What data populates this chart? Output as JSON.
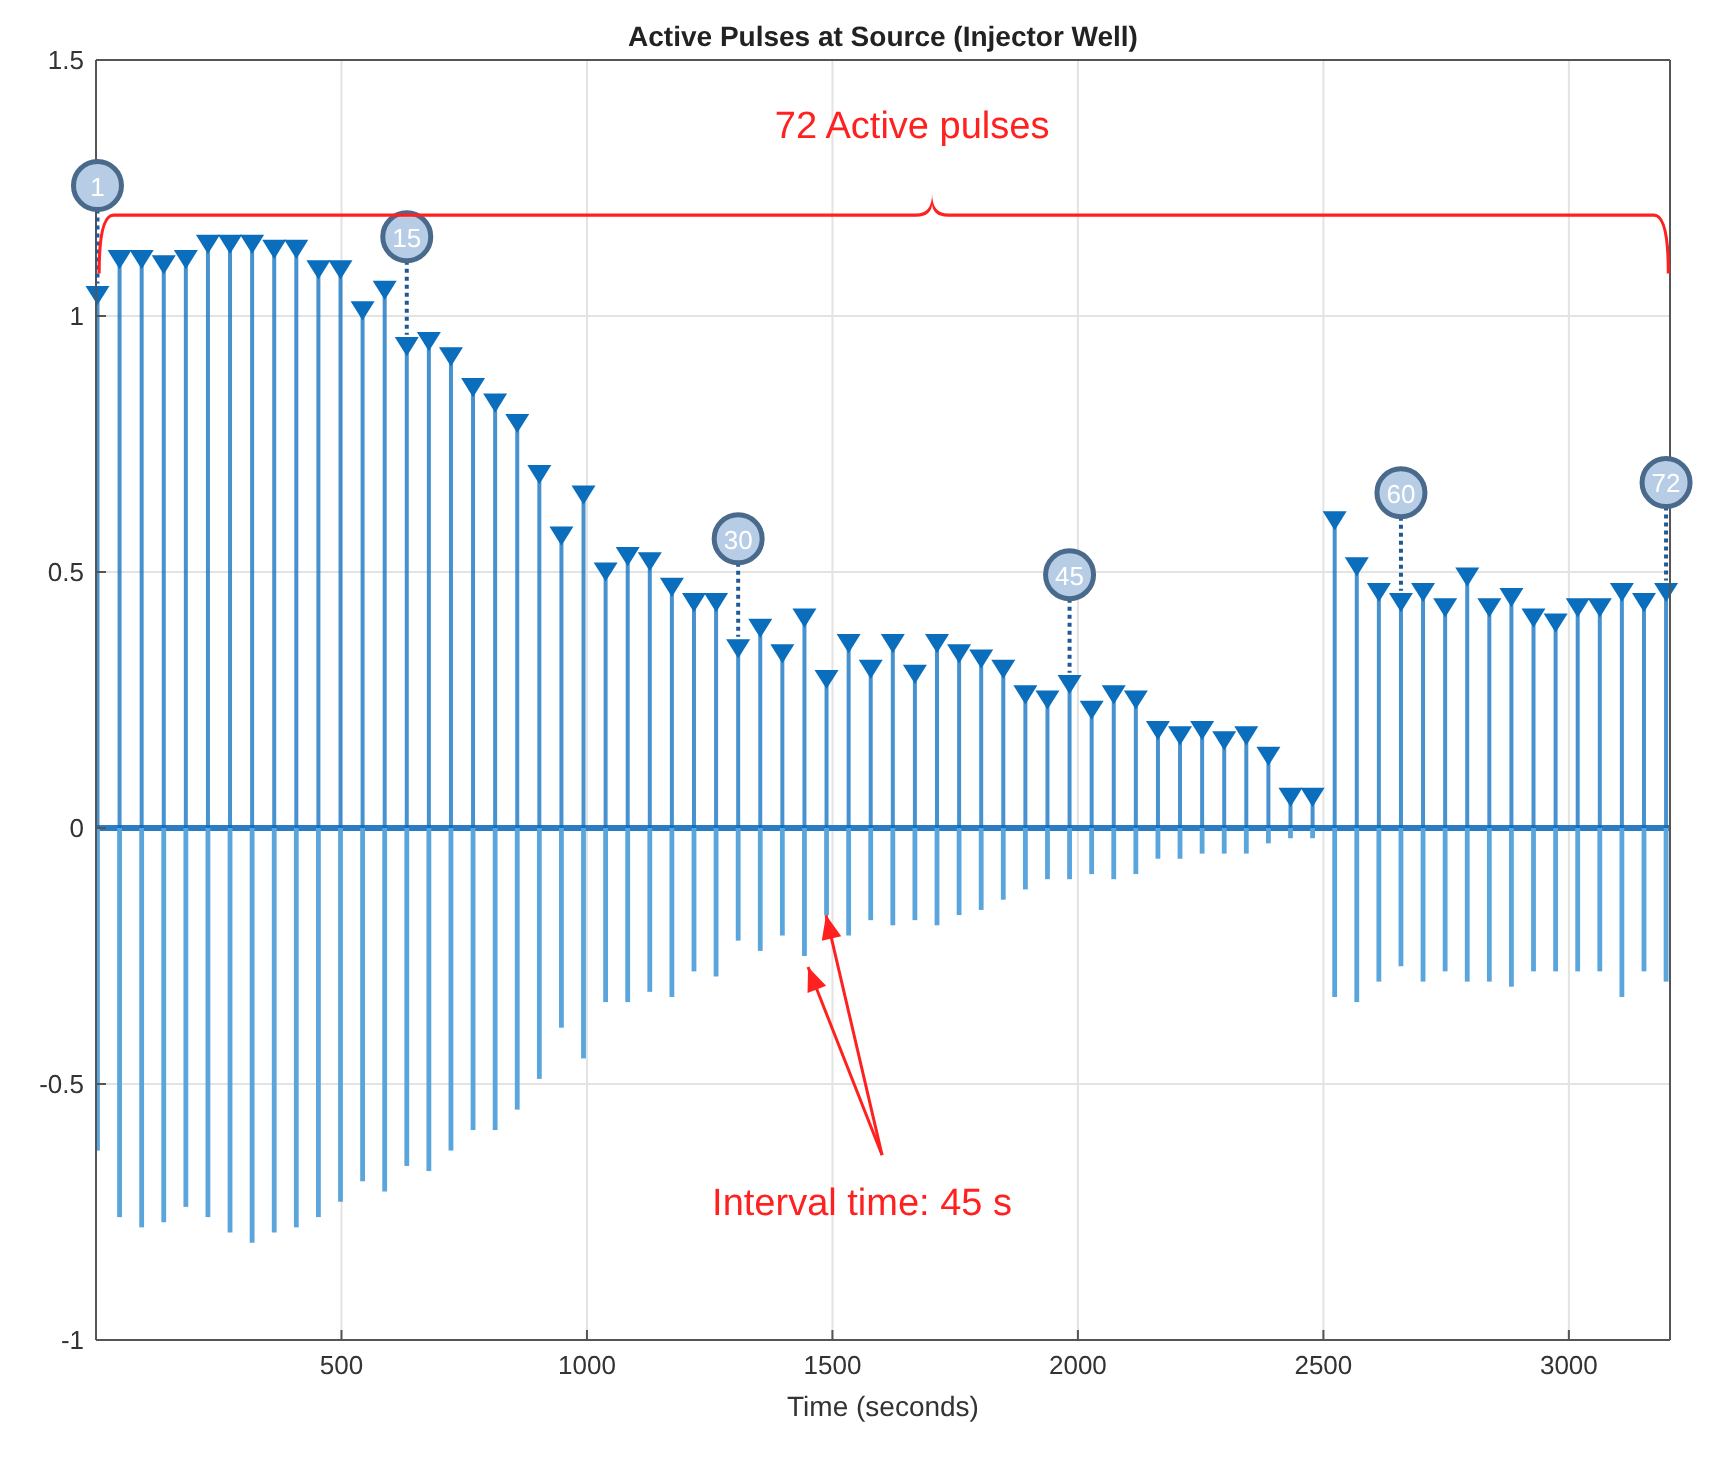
{
  "chart_data": {
    "type": "lollipop",
    "title": "Active Pulses at Source (Injector Well)",
    "xlabel": "Time (seconds)",
    "x": [
      3,
      48,
      93,
      138,
      183,
      228,
      273,
      318,
      363,
      408,
      453,
      498,
      543,
      588,
      633,
      678,
      723,
      768,
      813,
      858,
      903,
      948,
      993,
      1038,
      1083,
      1128,
      1173,
      1218,
      1263,
      1308,
      1353,
      1398,
      1443,
      1488,
      1533,
      1578,
      1623,
      1668,
      1713,
      1758,
      1803,
      1848,
      1893,
      1938,
      1983,
      2028,
      2073,
      2118,
      2163,
      2208,
      2253,
      2298,
      2343,
      2388,
      2433,
      2478,
      2523,
      2568,
      2613,
      2658,
      2703,
      2748,
      2793,
      2838,
      2883,
      2928,
      2973,
      3018,
      3063,
      3108,
      3153,
      3198
    ],
    "series": [
      {
        "color": "#0a6ebd",
        "marker": "triangle",
        "values": [
          1.04,
          1.11,
          1.11,
          1.1,
          1.11,
          1.14,
          1.14,
          1.14,
          1.13,
          1.13,
          1.09,
          1.09,
          1.01,
          1.05,
          0.94,
          0.95,
          0.92,
          0.86,
          0.83,
          0.79,
          0.69,
          0.57,
          0.65,
          0.5,
          0.53,
          0.52,
          0.47,
          0.44,
          0.44,
          0.35,
          0.39,
          0.34,
          0.41,
          0.29,
          0.36,
          0.31,
          0.36,
          0.3,
          0.36,
          0.34,
          0.33,
          0.31,
          0.26,
          0.25,
          0.28,
          0.23,
          0.26,
          0.25,
          0.19,
          0.18,
          0.19,
          0.17,
          0.18,
          0.14,
          0.06,
          0.06,
          0.6,
          0.51,
          0.46,
          0.44,
          0.46,
          0.43,
          0.49,
          0.43,
          0.45,
          0.41,
          0.4,
          0.43,
          0.43,
          0.46,
          0.44,
          0.46
        ]
      },
      {
        "type": "bar",
        "color": "#5aa5dc",
        "values": [
          -0.63,
          -0.76,
          -0.78,
          -0.77,
          -0.74,
          -0.76,
          -0.79,
          -0.81,
          -0.79,
          -0.78,
          -0.76,
          -0.73,
          -0.69,
          -0.71,
          -0.66,
          -0.67,
          -0.63,
          -0.59,
          -0.59,
          -0.55,
          -0.49,
          -0.39,
          -0.45,
          -0.34,
          -0.34,
          -0.32,
          -0.33,
          -0.28,
          -0.29,
          -0.22,
          -0.24,
          -0.21,
          -0.25,
          -0.17,
          -0.21,
          -0.18,
          -0.19,
          -0.18,
          -0.19,
          -0.17,
          -0.16,
          -0.14,
          -0.12,
          -0.1,
          -0.1,
          -0.09,
          -0.1,
          -0.09,
          -0.06,
          -0.06,
          -0.05,
          -0.05,
          -0.05,
          -0.03,
          -0.02,
          -0.02,
          -0.33,
          -0.34,
          -0.3,
          -0.27,
          -0.3,
          -0.28,
          -0.3,
          -0.3,
          -0.31,
          -0.28,
          -0.28,
          -0.28,
          -0.28,
          -0.33,
          -0.28,
          -0.3
        ]
      }
    ],
    "xlim": [
      0,
      3206
    ],
    "xticks": [
      500,
      1000,
      1500,
      2000,
      2500,
      3000
    ],
    "ylim": [
      -1,
      1.5
    ],
    "yticks": [
      -1,
      -0.5,
      0,
      0.5,
      1,
      1.5
    ],
    "grid": true,
    "ref_lines": [
      {
        "axis": "y",
        "value": 0,
        "color": "#2b7cc2"
      }
    ],
    "annotations": [
      {
        "text": "1",
        "x": 3,
        "y": 1.04
      },
      {
        "text": "15",
        "x": 633,
        "y": 0.94
      },
      {
        "text": "30",
        "x": 1308,
        "y": 0.35
      },
      {
        "text": "45",
        "x": 1983,
        "y": 0.28
      },
      {
        "text": "60",
        "x": 2658,
        "y": 0.44
      },
      {
        "text": "72",
        "x": 3198,
        "y": 0.46
      },
      "72 Active pulses",
      {
        "text": "Interval time: 45 s",
        "x": 1487,
        "y": -0.17
      }
    ]
  }
}
